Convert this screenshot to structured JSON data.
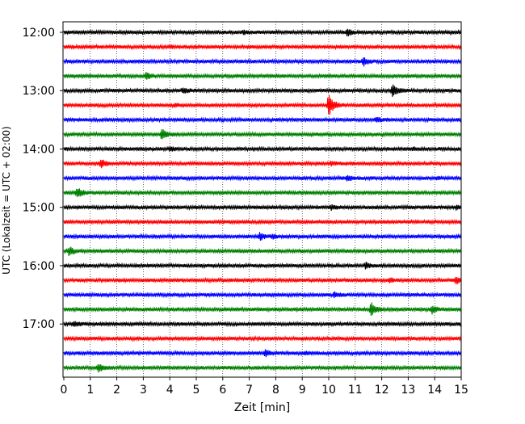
{
  "chart_data": {
    "type": "line",
    "title": "",
    "xlabel": "Zeit  [min]",
    "ylabel": "UTC (Lokalzeit = UTC + 02:00)",
    "xlim": [
      0,
      15
    ],
    "x_ticks": [
      "0",
      "1",
      "2",
      "3",
      "4",
      "5",
      "6",
      "7",
      "8",
      "9",
      "10",
      "11",
      "12",
      "13",
      "14",
      "15"
    ],
    "y_tick_labels": [
      "12:00",
      "13:00",
      "14:00",
      "15:00",
      "16:00",
      "17:00"
    ],
    "grid": "vertical dotted lines at every minute",
    "trace_interval_minutes": 15,
    "trace_colors": [
      "#000000",
      "#ff0000",
      "#0000ff",
      "#008000"
    ],
    "series": [
      {
        "start": "12:00",
        "color": "#000000",
        "events": [
          {
            "t": 6.8,
            "amp": 0.25
          },
          {
            "t": 10.7,
            "amp": 0.45
          }
        ]
      },
      {
        "start": "12:15",
        "color": "#ff0000",
        "events": [
          {
            "t": 4.0,
            "amp": 0.15
          }
        ]
      },
      {
        "start": "12:30",
        "color": "#0000ff",
        "events": [
          {
            "t": 11.3,
            "amp": 0.6
          }
        ]
      },
      {
        "start": "12:45",
        "color": "#008000",
        "events": [
          {
            "t": 3.1,
            "amp": 0.5
          }
        ]
      },
      {
        "start": "13:00",
        "color": "#000000",
        "events": [
          {
            "t": 4.5,
            "amp": 0.35
          },
          {
            "t": 12.4,
            "amp": 1.0
          }
        ]
      },
      {
        "start": "13:15",
        "color": "#ff0000",
        "events": [
          {
            "t": 4.2,
            "amp": 0.2
          },
          {
            "t": 10.0,
            "amp": 1.5
          }
        ]
      },
      {
        "start": "13:30",
        "color": "#0000ff",
        "events": [
          {
            "t": 11.8,
            "amp": 0.3
          }
        ]
      },
      {
        "start": "13:45",
        "color": "#008000",
        "events": [
          {
            "t": 3.7,
            "amp": 0.75
          }
        ]
      },
      {
        "start": "14:00",
        "color": "#000000",
        "events": [
          {
            "t": 4.0,
            "amp": 0.3
          },
          {
            "t": 13.2,
            "amp": 0.2
          }
        ]
      },
      {
        "start": "14:15",
        "color": "#ff0000",
        "events": [
          {
            "t": 1.4,
            "amp": 0.6
          },
          {
            "t": 10.1,
            "amp": 0.25
          }
        ]
      },
      {
        "start": "14:30",
        "color": "#0000ff",
        "events": [
          {
            "t": 10.7,
            "amp": 0.35
          },
          {
            "t": 14.1,
            "amp": 0.2
          }
        ]
      },
      {
        "start": "14:45",
        "color": "#008000",
        "events": [
          {
            "t": 0.5,
            "amp": 0.8
          }
        ]
      },
      {
        "start": "15:00",
        "color": "#000000",
        "events": [
          {
            "t": 10.1,
            "amp": 0.3
          },
          {
            "t": 14.8,
            "amp": 0.25
          }
        ]
      },
      {
        "start": "15:15",
        "color": "#ff0000",
        "events": []
      },
      {
        "start": "15:30",
        "color": "#0000ff",
        "events": [
          {
            "t": 7.4,
            "amp": 0.5
          },
          {
            "t": 7.9,
            "amp": 0.2
          }
        ]
      },
      {
        "start": "15:45",
        "color": "#008000",
        "events": [
          {
            "t": 0.2,
            "amp": 0.6
          }
        ]
      },
      {
        "start": "16:00",
        "color": "#000000",
        "events": [
          {
            "t": 11.4,
            "amp": 0.4
          }
        ]
      },
      {
        "start": "16:15",
        "color": "#ff0000",
        "events": [
          {
            "t": 12.3,
            "amp": 0.3
          },
          {
            "t": 14.8,
            "amp": 0.45
          }
        ]
      },
      {
        "start": "16:30",
        "color": "#0000ff",
        "events": [
          {
            "t": 10.2,
            "amp": 0.4
          }
        ]
      },
      {
        "start": "16:45",
        "color": "#008000",
        "events": [
          {
            "t": 11.6,
            "amp": 0.9
          },
          {
            "t": 13.9,
            "amp": 0.6
          }
        ]
      },
      {
        "start": "17:00",
        "color": "#000000",
        "events": [
          {
            "t": 0.4,
            "amp": 0.35
          }
        ]
      },
      {
        "start": "17:15",
        "color": "#ff0000",
        "events": []
      },
      {
        "start": "17:30",
        "color": "#0000ff",
        "events": [
          {
            "t": 7.6,
            "amp": 0.45
          },
          {
            "t": 9.1,
            "amp": 0.2
          }
        ]
      },
      {
        "start": "17:45",
        "color": "#008000",
        "events": [
          {
            "t": 1.3,
            "amp": 0.65
          }
        ]
      }
    ]
  }
}
